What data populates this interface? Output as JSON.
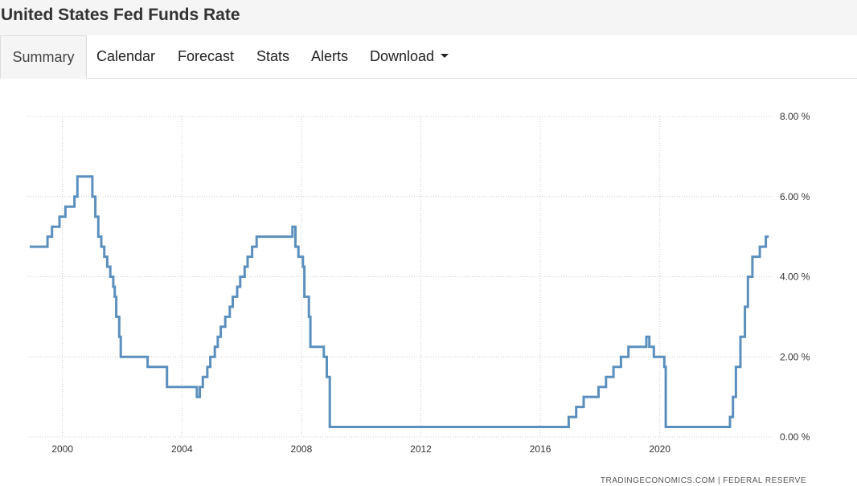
{
  "header": {
    "title": "United States Fed Funds Rate"
  },
  "tabs": [
    {
      "label": "Summary",
      "active": true
    },
    {
      "label": "Calendar"
    },
    {
      "label": "Forecast"
    },
    {
      "label": "Stats"
    },
    {
      "label": "Alerts"
    },
    {
      "label": "Download",
      "dropdown": true
    }
  ],
  "source_text": "TRADINGECONOMICS.COM  |  FEDERAL RESERVE",
  "colors": {
    "line": "#5b8fbd",
    "grid": "#cccccc"
  },
  "chart_data": {
    "type": "line",
    "step": true,
    "xlim": [
      1998.85,
      2023.75
    ],
    "ylim": [
      0,
      8
    ],
    "x_ticks": [
      2000,
      2004,
      2008,
      2012,
      2016,
      2020
    ],
    "x_tick_labels": [
      "2000",
      "2004",
      "2008",
      "2012",
      "2016",
      "2020"
    ],
    "y_ticks": [
      0,
      2,
      4,
      6,
      8
    ],
    "y_tick_labels": [
      "0.00 %",
      "2.00 %",
      "4.00 %",
      "6.00 %",
      "8.00 %"
    ],
    "grid": true,
    "series": [
      {
        "x": [
          1998.9,
          1999.0,
          1999.5,
          1999.65,
          1999.9,
          2000.1,
          2000.4,
          2000.5,
          2001.0,
          2001.1,
          2001.2,
          2001.3,
          2001.4,
          2001.5,
          2001.6,
          2001.7,
          2001.75,
          2001.8,
          2001.9,
          2001.95,
          2002.85,
          2003.5,
          2004.5,
          2004.6,
          2004.7,
          2004.85,
          2004.95,
          2005.1,
          2005.2,
          2005.3,
          2005.45,
          2005.6,
          2005.7,
          2005.85,
          2005.95,
          2006.1,
          2006.2,
          2006.35,
          2006.5,
          2007.7,
          2007.8,
          2007.9,
          2008.05,
          2008.1,
          2008.25,
          2008.3,
          2008.75,
          2008.85,
          2008.95,
          2015.95,
          2016.95,
          2017.2,
          2017.45,
          2017.95,
          2018.2,
          2018.45,
          2018.7,
          2018.95,
          2019.55,
          2019.65,
          2019.8,
          2020.15,
          2020.2,
          2022.2,
          2022.35,
          2022.45,
          2022.55,
          2022.7,
          2022.85,
          2022.95,
          2023.1,
          2023.35,
          2023.55
        ],
        "y": [
          4.75,
          4.75,
          5.0,
          5.25,
          5.5,
          5.75,
          6.0,
          6.5,
          6.0,
          5.5,
          5.0,
          4.75,
          4.5,
          4.25,
          4.0,
          3.75,
          3.5,
          3.0,
          2.5,
          2.0,
          1.75,
          1.25,
          1.0,
          1.25,
          1.5,
          1.75,
          2.0,
          2.25,
          2.5,
          2.75,
          3.0,
          3.25,
          3.5,
          3.75,
          4.0,
          4.25,
          4.5,
          4.75,
          5.0,
          5.25,
          4.75,
          4.5,
          4.25,
          3.5,
          3.0,
          2.25,
          2.0,
          1.5,
          0.25,
          0.25,
          0.5,
          0.75,
          1.0,
          1.25,
          1.5,
          1.75,
          2.0,
          2.25,
          2.5,
          2.25,
          2.0,
          1.75,
          0.25,
          0.25,
          0.5,
          1.0,
          1.75,
          2.5,
          3.25,
          4.0,
          4.5,
          4.75,
          5.0
        ]
      }
    ]
  }
}
